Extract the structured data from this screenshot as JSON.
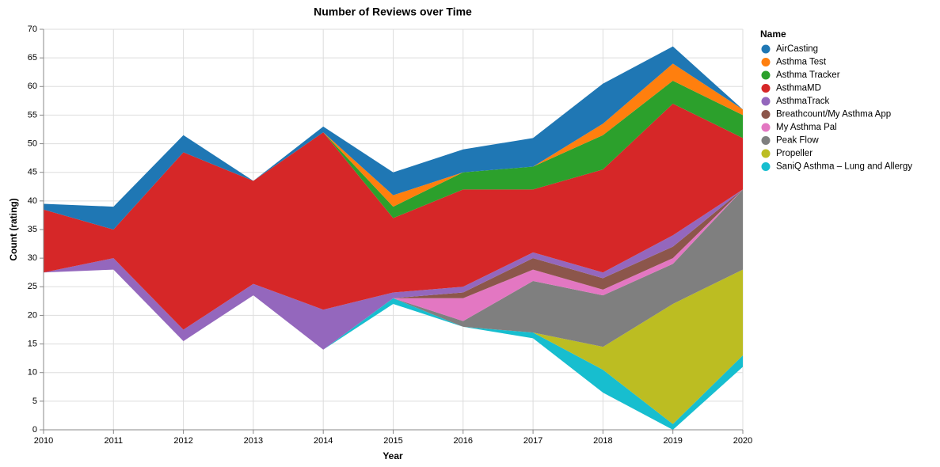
{
  "chart_data": {
    "type": "streamgraph",
    "title": "Number of Reviews over Time",
    "x_label": "Year",
    "y_label": "Count (rating)",
    "legend_title": "Name",
    "x": [
      2010,
      2011,
      2012,
      2013,
      2014,
      2015,
      2016,
      2017,
      2018,
      2019,
      2020
    ],
    "xlim": [
      2010,
      2020
    ],
    "xticks": [
      2010,
      2011,
      2012,
      2013,
      2014,
      2015,
      2016,
      2017,
      2018,
      2019,
      2020
    ],
    "ylim": [
      0,
      70
    ],
    "yticks": [
      0,
      5,
      10,
      15,
      20,
      25,
      30,
      35,
      40,
      45,
      50,
      55,
      60,
      65,
      70
    ],
    "grid": true,
    "legend": "right",
    "series": [
      {
        "name": "AirCasting",
        "color": "#1f77b4",
        "values": [
          1,
          4,
          3,
          0,
          1,
          4,
          4,
          5,
          7,
          3,
          0
        ]
      },
      {
        "name": "Asthma Test",
        "color": "#ff7f0e",
        "values": [
          0,
          0,
          0,
          0,
          0,
          2,
          0,
          0,
          2,
          3,
          1
        ]
      },
      {
        "name": "Asthma Tracker",
        "color": "#2ca02c",
        "values": [
          0,
          0,
          0,
          0,
          0,
          2,
          3,
          4,
          6,
          4,
          4
        ]
      },
      {
        "name": "AsthmaMD",
        "color": "#d62728",
        "values": [
          11,
          5,
          31,
          18,
          31,
          13,
          17,
          11,
          18,
          23,
          9
        ]
      },
      {
        "name": "AsthmaTrack",
        "color": "#9467bd",
        "values": [
          0,
          2,
          2,
          2,
          7,
          1,
          1,
          1,
          1,
          2,
          0
        ]
      },
      {
        "name": "Breathcount/My Asthma App",
        "color": "#8c564b",
        "values": [
          0,
          0,
          0,
          0,
          0,
          0,
          1,
          2,
          2,
          2,
          0
        ]
      },
      {
        "name": "My Asthma Pal",
        "color": "#e377c2",
        "values": [
          0,
          0,
          0,
          0,
          0,
          0,
          4,
          2,
          1,
          1,
          0
        ]
      },
      {
        "name": "Peak Flow",
        "color": "#7f7f7f",
        "values": [
          0,
          0,
          0,
          0,
          0,
          0,
          1,
          9,
          9,
          7,
          14
        ]
      },
      {
        "name": "Propeller",
        "color": "#bcbd22",
        "values": [
          0,
          0,
          0,
          0,
          0,
          0,
          0,
          0,
          4,
          21,
          15
        ]
      },
      {
        "name": "SaniQ Asthma – Lung and Allergy",
        "color": "#17becf",
        "values": [
          0,
          0,
          0,
          0,
          0,
          1,
          0,
          1,
          4,
          1,
          2
        ]
      }
    ]
  }
}
